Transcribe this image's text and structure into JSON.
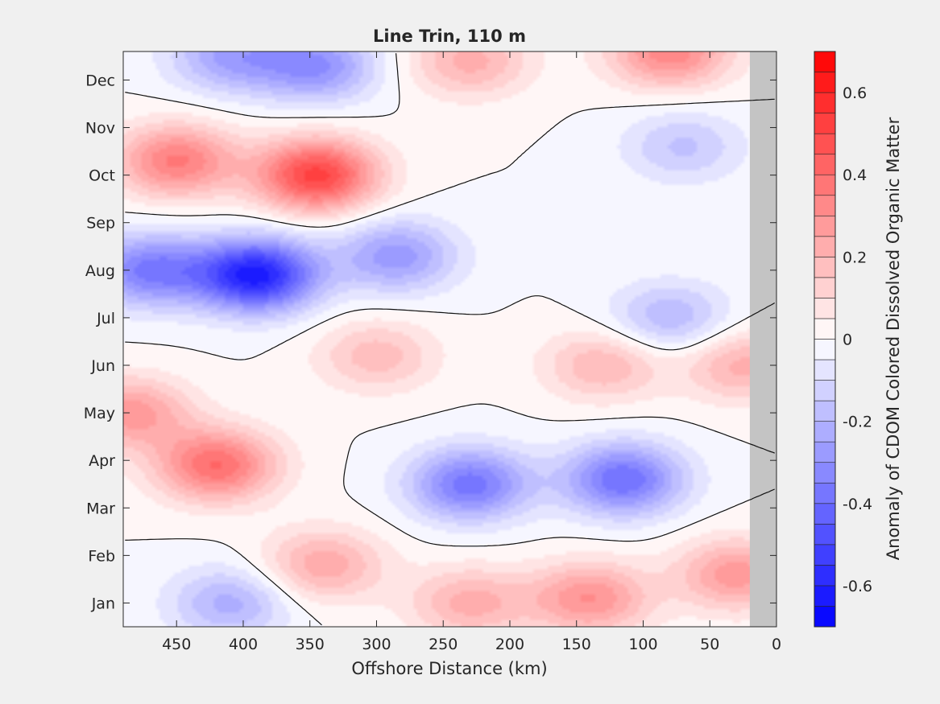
{
  "chart_data": {
    "type": "heatmap",
    "subtype": "filled-contour",
    "title": "Line Trin, 110 m",
    "xlabel": "Offshore Distance (km)",
    "ylabel": "",
    "xlim": [
      490,
      0
    ],
    "x_reversed": true,
    "x_ticks": [
      450,
      400,
      350,
      300,
      250,
      200,
      150,
      100,
      50,
      0
    ],
    "y_ticks": [
      "Jan",
      "Feb",
      "Mar",
      "Apr",
      "May",
      "Jun",
      "Jul",
      "Aug",
      "Sep",
      "Oct",
      "Nov",
      "Dec"
    ],
    "y_range_months": [
      0.5,
      12.6
    ],
    "no_data_x_range": [
      0,
      20
    ],
    "no_data_color": "#c4c4c4",
    "colorbar": {
      "label": "Anomaly of CDOM Colored Dissolved Organic Matter",
      "range": [
        -0.7,
        0.7
      ],
      "levels": 28,
      "ticks": [
        -0.6,
        -0.4,
        -0.2,
        0,
        0.2,
        0.4,
        0.6
      ],
      "tick_labels": [
        "-0.6",
        "-0.4",
        "-0.2",
        "0",
        "0.2",
        "0.4",
        "0.6"
      ],
      "min_color": "#0000ff",
      "mid_color": "#ffffff",
      "max_color": "#ff0000"
    },
    "field_features": [
      {
        "x_km": 390,
        "month": 7.9,
        "value": -0.62
      },
      {
        "x_km": 470,
        "month": 8.0,
        "value": -0.36
      },
      {
        "x_km": 285,
        "month": 8.3,
        "value": -0.28
      },
      {
        "x_km": 230,
        "month": 3.5,
        "value": -0.38
      },
      {
        "x_km": 115,
        "month": 3.6,
        "value": -0.4
      },
      {
        "x_km": 410,
        "month": 12.5,
        "value": -0.25
      },
      {
        "x_km": 345,
        "month": 12.3,
        "value": -0.3
      },
      {
        "x_km": 80,
        "month": 7.0,
        "value": -0.2
      },
      {
        "x_km": 70,
        "month": 10.6,
        "value": -0.16
      },
      {
        "x_km": 410,
        "month": 1.0,
        "value": -0.22
      },
      {
        "x_km": 345,
        "month": 10.0,
        "value": 0.52
      },
      {
        "x_km": 450,
        "month": 10.3,
        "value": 0.36
      },
      {
        "x_km": 420,
        "month": 3.9,
        "value": 0.4
      },
      {
        "x_km": 485,
        "month": 5.0,
        "value": 0.28
      },
      {
        "x_km": 140,
        "month": 1.1,
        "value": 0.3
      },
      {
        "x_km": 80,
        "month": 12.6,
        "value": 0.34
      },
      {
        "x_km": 130,
        "month": 6.0,
        "value": 0.2
      },
      {
        "x_km": 230,
        "month": 1.0,
        "value": 0.22
      },
      {
        "x_km": 340,
        "month": 1.8,
        "value": 0.24
      },
      {
        "x_km": 30,
        "month": 1.6,
        "value": 0.28
      },
      {
        "x_km": 300,
        "month": 6.2,
        "value": 0.18
      },
      {
        "x_km": 25,
        "month": 6.0,
        "value": 0.22
      },
      {
        "x_km": 230,
        "month": 12.4,
        "value": 0.22
      }
    ]
  }
}
